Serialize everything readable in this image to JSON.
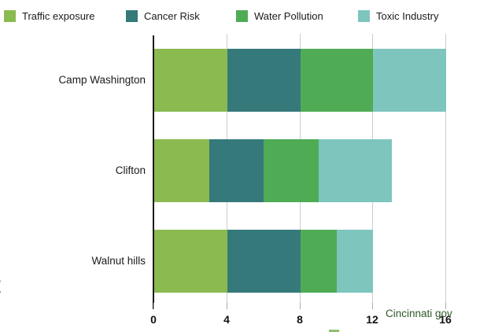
{
  "legend": {
    "items": [
      {
        "label": "Traffic exposure",
        "color": "#8aba50"
      },
      {
        "label": "Cancer Risk",
        "color": "#35797b"
      },
      {
        "label": "Water Pollution",
        "color": "#4fac55"
      },
      {
        "label": "Toxic Industry",
        "color": "#7ec5be"
      }
    ]
  },
  "chart_data": {
    "type": "bar",
    "orientation": "horizontal",
    "stacked": true,
    "categories": [
      "Camp Washington",
      "Clifton",
      "Walnut hills"
    ],
    "series": [
      {
        "name": "Traffic exposure",
        "color": "#8aba50",
        "values": [
          4,
          3,
          4
        ]
      },
      {
        "name": "Cancer Risk",
        "color": "#35797b",
        "values": [
          4,
          3,
          4
        ]
      },
      {
        "name": "Water Pollution",
        "color": "#4fac55",
        "values": [
          4,
          3,
          2
        ]
      },
      {
        "name": "Toxic Industry",
        "color": "#7ec5be",
        "values": [
          4,
          4,
          2
        ]
      }
    ],
    "totals": [
      16,
      13,
      12
    ],
    "title": "",
    "xlabel": "",
    "ylabel": "",
    "x_ticks": [
      "0",
      "4",
      "8",
      "12",
      "16"
    ],
    "x_tick_values": [
      0,
      4,
      8,
      12,
      16
    ],
    "xlim": [
      0,
      16
    ],
    "grid": "vertical",
    "legend_position": "top"
  },
  "annotations": {
    "watermark": "Cincinnati gov",
    "watermark_color": "#2d5a27",
    "left_edge_fragment": "t"
  }
}
